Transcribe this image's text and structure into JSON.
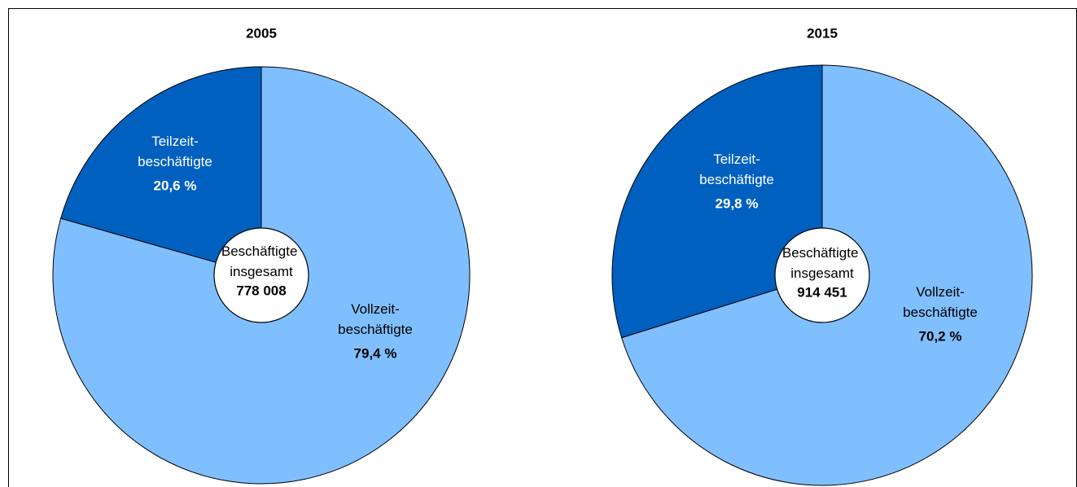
{
  "chart_data": [
    {
      "type": "pie",
      "title": "2005",
      "categories": [
        "Vollzeit-beschäftigte",
        "Teilzeit-beschäftigte"
      ],
      "values": [
        79.4,
        20.6
      ],
      "value_labels": [
        "79,4 %",
        "20,6 %"
      ],
      "colors": [
        "#80bfff",
        "#0060c0"
      ],
      "center_label": "Beschäftigte insgesamt",
      "total": 778008,
      "total_label": "778 008"
    },
    {
      "type": "pie",
      "title": "2015",
      "categories": [
        "Vollzeit-beschäftigte",
        "Teilzeit-beschäftigte"
      ],
      "values": [
        70.2,
        29.8
      ],
      "value_labels": [
        "70,2 %",
        "29,8 %"
      ],
      "colors": [
        "#80bfff",
        "#0060c0"
      ],
      "center_label": "Beschäftigte insgesamt",
      "total": 914451,
      "total_label": "914 451"
    }
  ]
}
